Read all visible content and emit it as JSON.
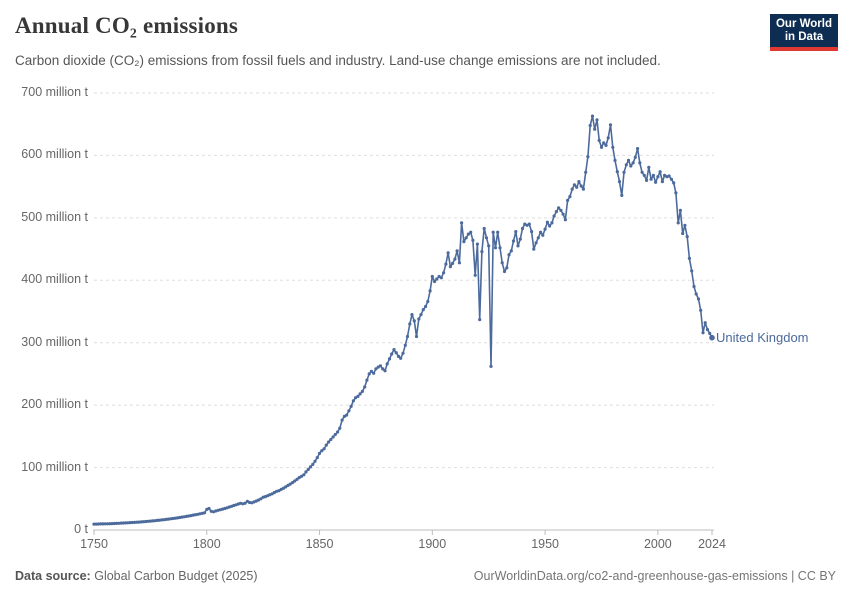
{
  "header": {
    "title": "Annual CO₂ emissions",
    "subtitle": "Carbon dioxide (CO₂) emissions from fossil fuels and industry. Land-use change emissions are not included.",
    "logo": {
      "line1": "Our World",
      "line2": "in Data",
      "bg_color": "#0d2e52",
      "accent_color": "#e03931",
      "text_color": "#ffffff"
    }
  },
  "chart_data": {
    "type": "line",
    "title": "Annual CO₂ emissions",
    "unit": "million t",
    "entity_label": "United Kingdom",
    "grid": true,
    "grid_color": "#dedede",
    "axis_color": "#bdbdbd",
    "xlim": [
      1750,
      2024
    ],
    "ylim": [
      0,
      700
    ],
    "xticks": [
      {
        "value": 1750,
        "label": "1750"
      },
      {
        "value": 1800,
        "label": "1800"
      },
      {
        "value": 1850,
        "label": "1850"
      },
      {
        "value": 1900,
        "label": "1900"
      },
      {
        "value": 1950,
        "label": "1950"
      },
      {
        "value": 2000,
        "label": "2000"
      },
      {
        "value": 2024,
        "label": "2024"
      }
    ],
    "yticks": [
      {
        "value": 0,
        "label": "0 t"
      },
      {
        "value": 100,
        "label": "100 million t"
      },
      {
        "value": 200,
        "label": "200 million t"
      },
      {
        "value": 300,
        "label": "300 million t"
      },
      {
        "value": 400,
        "label": "400 million t"
      },
      {
        "value": 500,
        "label": "500 million t"
      },
      {
        "value": 600,
        "label": "600 million t"
      },
      {
        "value": 700,
        "label": "700 million t"
      }
    ],
    "series": [
      {
        "name": "United Kingdom",
        "color": "#4C6A9C",
        "start_year": 1750,
        "end_year": 2024,
        "values": [
          9.4,
          9.5,
          9.6,
          9.7,
          9.8,
          9.9,
          10.0,
          10.1,
          10.3,
          10.4,
          10.6,
          10.8,
          11.0,
          11.2,
          11.4,
          11.6,
          11.8,
          12.0,
          12.2,
          12.5,
          12.7,
          13.0,
          13.3,
          13.6,
          13.9,
          14.2,
          14.6,
          14.9,
          15.3,
          15.7,
          16.1,
          16.5,
          17.0,
          17.4,
          17.9,
          18.4,
          18.9,
          19.4,
          20.0,
          20.6,
          21.2,
          21.8,
          22.5,
          23.1,
          23.8,
          24.5,
          25.2,
          26.0,
          26.7,
          27.5,
          33.0,
          34.5,
          30.0,
          29.2,
          30.5,
          31.5,
          32.5,
          33.5,
          34.5,
          35.6,
          36.8,
          38.0,
          39.2,
          40.4,
          41.6,
          42.8,
          42.0,
          43.0,
          46.0,
          44.0,
          43.5,
          45.0,
          46.5,
          48.0,
          50.0,
          52.5,
          53.5,
          55.0,
          56.5,
          58.0,
          60.0,
          62.0,
          63.0,
          65.0,
          67.0,
          69.0,
          71.5,
          73.5,
          76.0,
          78.5,
          81.0,
          84.0,
          86.0,
          88.5,
          93.0,
          97.0,
          101.0,
          105.0,
          110.0,
          116.0,
          122.7,
          127,
          130,
          136,
          141,
          145,
          149,
          153,
          157,
          163,
          176,
          182,
          184,
          191,
          198,
          207,
          212,
          214,
          218,
          222,
          229,
          240,
          250,
          254,
          251,
          258,
          261,
          263,
          258,
          255,
          266,
          274,
          282,
          289,
          284,
          278,
          275,
          283,
          296,
          310,
          330,
          345,
          335,
          310,
          338,
          345,
          353,
          358,
          366,
          383,
          406,
          398,
          402,
          406,
          404,
          412,
          426,
          444,
          422,
          427,
          434,
          447,
          428,
          492,
          462,
          468,
          474,
          477,
          464,
          408,
          458,
          337,
          446,
          483,
          468,
          455,
          262,
          477,
          452,
          477,
          452,
          428,
          414,
          420,
          441,
          447,
          463,
          478,
          455,
          466,
          483,
          490,
          488,
          490,
          478,
          450,
          460,
          468,
          477,
          472,
          482,
          493,
          487,
          492,
          503,
          510,
          516,
          512,
          506,
          497,
          528,
          534,
          546,
          553,
          549,
          558,
          551,
          546,
          573,
          598,
          648,
          663,
          642,
          657,
          624,
          613,
          620,
          616,
          628,
          649,
          613,
          592,
          574,
          558,
          536,
          573,
          585,
          592,
          583,
          588,
          597,
          611,
          588,
          573,
          568,
          560,
          581,
          562,
          568,
          557,
          566,
          574,
          558,
          568,
          566,
          567,
          562,
          556,
          540,
          492,
          512,
          475,
          488,
          470,
          435,
          415,
          390,
          378,
          370,
          352,
          316,
          332,
          321,
          315,
          308
        ]
      }
    ]
  },
  "footer": {
    "source_label": "Data source:",
    "source_value": "Global Carbon Budget (2025)",
    "link": "OurWorldinData.org/co2-and-greenhouse-gas-emissions | CC BY"
  }
}
